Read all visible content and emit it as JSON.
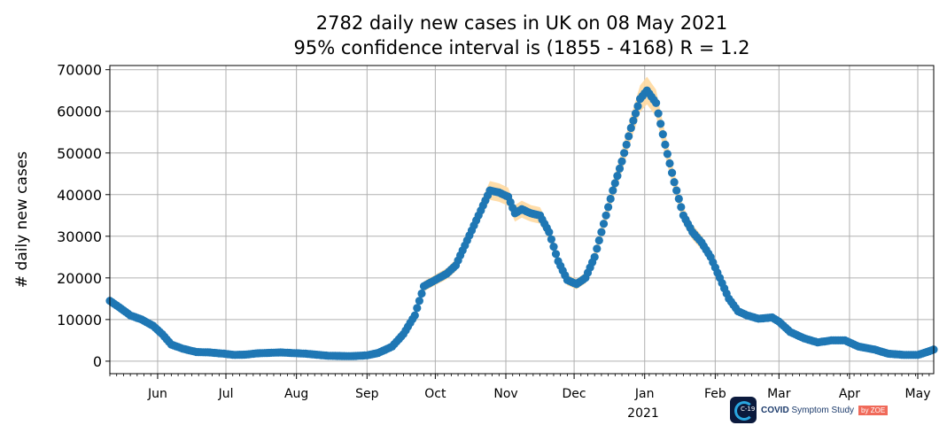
{
  "chart_data": {
    "type": "scatter",
    "title": "2782 daily new cases in UK on 08 May 2021",
    "subtitle": "95% confidence interval is (1855 - 4168) R = 1.2",
    "ylabel": "# daily new cases",
    "xlabel": "",
    "ylim": [
      -3000,
      71000
    ],
    "xlim": [
      "2020-05-11",
      "2021-05-08"
    ],
    "grid": true,
    "yticks": [
      0,
      10000,
      20000,
      30000,
      40000,
      50000,
      60000,
      70000
    ],
    "ytick_labels": [
      "0",
      "10000",
      "20000",
      "30000",
      "40000",
      "50000",
      "60000",
      "70000"
    ],
    "xticks": [
      {
        "date": "2020-06-01",
        "label": "Jun"
      },
      {
        "date": "2020-07-01",
        "label": "Jul"
      },
      {
        "date": "2020-08-01",
        "label": "Aug"
      },
      {
        "date": "2020-09-01",
        "label": "Sep"
      },
      {
        "date": "2020-10-01",
        "label": "Oct"
      },
      {
        "date": "2020-11-01",
        "label": "Nov"
      },
      {
        "date": "2020-12-01",
        "label": "Dec"
      },
      {
        "date": "2021-01-01",
        "label": "Jan"
      },
      {
        "date": "2021-02-01",
        "label": "Feb"
      },
      {
        "date": "2021-03-01",
        "label": "Mar"
      },
      {
        "date": "2021-04-01",
        "label": "Apr"
      },
      {
        "date": "2021-05-01",
        "label": "May"
      }
    ],
    "year_label": "2021",
    "series": [
      {
        "color": "#1f77b4",
        "band_color": "#ffd9a0",
        "points": [
          [
            "2020-05-11",
            14500
          ],
          [
            "2020-05-15",
            13000
          ],
          [
            "2020-05-20",
            11000
          ],
          [
            "2020-05-25",
            10000
          ],
          [
            "2020-05-30",
            8500
          ],
          [
            "2020-06-03",
            6500
          ],
          [
            "2020-06-07",
            4000
          ],
          [
            "2020-06-12",
            3000
          ],
          [
            "2020-06-18",
            2200
          ],
          [
            "2020-06-24",
            2100
          ],
          [
            "2020-06-30",
            1800
          ],
          [
            "2020-07-05",
            1500
          ],
          [
            "2020-07-10",
            1600
          ],
          [
            "2020-07-15",
            1900
          ],
          [
            "2020-07-25",
            2100
          ],
          [
            "2020-08-05",
            1800
          ],
          [
            "2020-08-15",
            1300
          ],
          [
            "2020-08-25",
            1200
          ],
          [
            "2020-09-01",
            1400
          ],
          [
            "2020-09-06",
            2000
          ],
          [
            "2020-09-12",
            3500
          ],
          [
            "2020-09-17",
            6500
          ],
          [
            "2020-09-22",
            11000
          ],
          [
            "2020-09-26",
            18000
          ],
          [
            "2020-10-01",
            19500
          ],
          [
            "2020-10-06",
            21000
          ],
          [
            "2020-10-10",
            23000
          ],
          [
            "2020-10-15",
            29000
          ],
          [
            "2020-10-20",
            35000
          ],
          [
            "2020-10-25",
            41000
          ],
          [
            "2020-10-29",
            40500
          ],
          [
            "2020-11-02",
            39500
          ],
          [
            "2020-11-05",
            35500
          ],
          [
            "2020-11-08",
            36500
          ],
          [
            "2020-11-12",
            35500
          ],
          [
            "2020-11-16",
            35000
          ],
          [
            "2020-11-20",
            31000
          ],
          [
            "2020-11-24",
            24000
          ],
          [
            "2020-11-28",
            19500
          ],
          [
            "2020-12-02",
            18500
          ],
          [
            "2020-12-06",
            20000
          ],
          [
            "2020-12-10",
            25000
          ],
          [
            "2020-12-14",
            33000
          ],
          [
            "2020-12-18",
            41000
          ],
          [
            "2020-12-22",
            48000
          ],
          [
            "2020-12-26",
            56000
          ],
          [
            "2020-12-30",
            63000
          ],
          [
            "2021-01-02",
            65000
          ],
          [
            "2021-01-06",
            62000
          ],
          [
            "2021-01-10",
            52000
          ],
          [
            "2021-01-14",
            43000
          ],
          [
            "2021-01-18",
            35000
          ],
          [
            "2021-01-22",
            31000
          ],
          [
            "2021-01-26",
            28500
          ],
          [
            "2021-01-30",
            25000
          ],
          [
            "2021-02-03",
            20000
          ],
          [
            "2021-02-07",
            15000
          ],
          [
            "2021-02-11",
            12000
          ],
          [
            "2021-02-15",
            11000
          ],
          [
            "2021-02-20",
            10200
          ],
          [
            "2021-02-26",
            10500
          ],
          [
            "2021-03-01",
            9500
          ],
          [
            "2021-03-06",
            7000
          ],
          [
            "2021-03-12",
            5500
          ],
          [
            "2021-03-18",
            4500
          ],
          [
            "2021-03-24",
            5000
          ],
          [
            "2021-03-30",
            5000
          ],
          [
            "2021-04-05",
            3500
          ],
          [
            "2021-04-12",
            2800
          ],
          [
            "2021-04-18",
            1800
          ],
          [
            "2021-04-25",
            1500
          ],
          [
            "2021-05-01",
            1500
          ],
          [
            "2021-05-05",
            2200
          ],
          [
            "2021-05-08",
            2800
          ]
        ]
      }
    ]
  },
  "logo": {
    "badge_text": "C-19",
    "brand_bold": "COVID",
    "brand_rest": "Symptom Study",
    "zoe_label": "by ZOE"
  }
}
